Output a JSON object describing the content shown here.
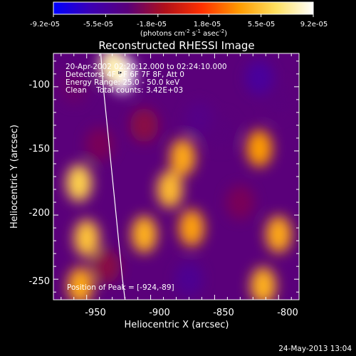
{
  "colorbar": {
    "tick_labels": [
      "-9.2e-05",
      "-5.5e-05",
      "-1.8e-05",
      "1.8e-05",
      "5.5e-05",
      "9.2e-05"
    ],
    "unit_parts": {
      "prefix": "(photons cm",
      "exp1": "-2",
      "mid1": " s",
      "exp2": "-1",
      "mid2": " asec",
      "exp3": "-2",
      "suffix": ")"
    },
    "stops": [
      "#0000ff",
      "#3c00b4",
      "#5a007a",
      "#b0101a",
      "#ff3000",
      "#ff9a00",
      "#ffe060",
      "#ffffff"
    ]
  },
  "plot": {
    "title": "Reconstructed RHESSI Image",
    "xlabel": "Heliocentric X (arcsec)",
    "ylabel": "Heliocentric Y (arcsec)",
    "x_tick_labels": [
      "-950",
      "-900",
      "-850",
      "-800"
    ],
    "y_tick_labels": [
      "-100",
      "-150",
      "-200",
      "-250"
    ],
    "annotations": [
      "20-Apr-2002 02:20:12.000 to 02:24:10.000",
      "Detectors: 4F 5F 6F 7F 8F, Att 0",
      "Energy Range: 25.0 - 50.0 keV",
      "Clean    Total counts: 3.42E+03"
    ],
    "peak_label": "Position of Peak = [-924,-89]"
  },
  "footer": {
    "timestamp": "24-May-2013 13:04"
  },
  "chart_data": {
    "type": "heatmap",
    "title": "Reconstructed RHESSI Image",
    "xlabel": "Heliocentric X (arcsec)",
    "ylabel": "Heliocentric Y (arcsec)",
    "xlim": [
      -976,
      -784
    ],
    "ylim": [
      -266,
      -74
    ],
    "x_ticks": [
      -950,
      -900,
      -850,
      -800
    ],
    "y_ticks": [
      -100,
      -150,
      -200,
      -250
    ],
    "colorbar_range": [
      -9.2e-05,
      9.2e-05
    ],
    "peak": [
      -924,
      -89
    ],
    "limb_path": [
      [
        -939,
        -74
      ],
      [
        -937,
        -100
      ],
      [
        -934,
        -130
      ],
      [
        -931,
        -160
      ],
      [
        -928,
        -190
      ],
      [
        -925,
        -220
      ],
      [
        -922,
        -250
      ],
      [
        -920,
        -266
      ]
    ],
    "bright_sources": [
      {
        "x": -922,
        "y": -90,
        "value": 9.2e-05
      },
      {
        "x": -930,
        "y": -84,
        "value": 8e-05
      },
      {
        "x": -956,
        "y": -175,
        "value": 6e-05
      },
      {
        "x": -950,
        "y": -218,
        "value": 5.5e-05
      },
      {
        "x": -885,
        "y": -180,
        "value": 5.2e-05
      },
      {
        "x": -905,
        "y": -215,
        "value": 4.8e-05
      },
      {
        "x": -875,
        "y": -155,
        "value": 4.5e-05
      },
      {
        "x": -815,
        "y": -148,
        "value": 4e-05
      },
      {
        "x": -800,
        "y": -215,
        "value": 4.5e-05
      },
      {
        "x": -812,
        "y": -255,
        "value": 4.8e-05
      },
      {
        "x": -955,
        "y": -255,
        "value": 4.5e-05
      },
      {
        "x": -868,
        "y": -210,
        "value": 4.2e-05
      }
    ],
    "dim_sources": [
      {
        "x": -815,
        "y": -93,
        "value": -5.5e-05
      },
      {
        "x": -862,
        "y": -125,
        "value": -4.5e-05
      },
      {
        "x": -845,
        "y": -135,
        "value": -4e-05
      },
      {
        "x": -870,
        "y": -250,
        "value": -5e-05
      },
      {
        "x": -960,
        "y": -100,
        "value": -3.5e-05
      },
      {
        "x": -800,
        "y": -110,
        "value": -4e-05
      },
      {
        "x": -940,
        "y": -145,
        "value": -3e-05
      },
      {
        "x": -830,
        "y": -190,
        "value": -3e-05
      },
      {
        "x": -905,
        "y": -130,
        "value": -2.5e-05
      },
      {
        "x": -935,
        "y": -240,
        "value": -2.5e-05
      }
    ]
  }
}
